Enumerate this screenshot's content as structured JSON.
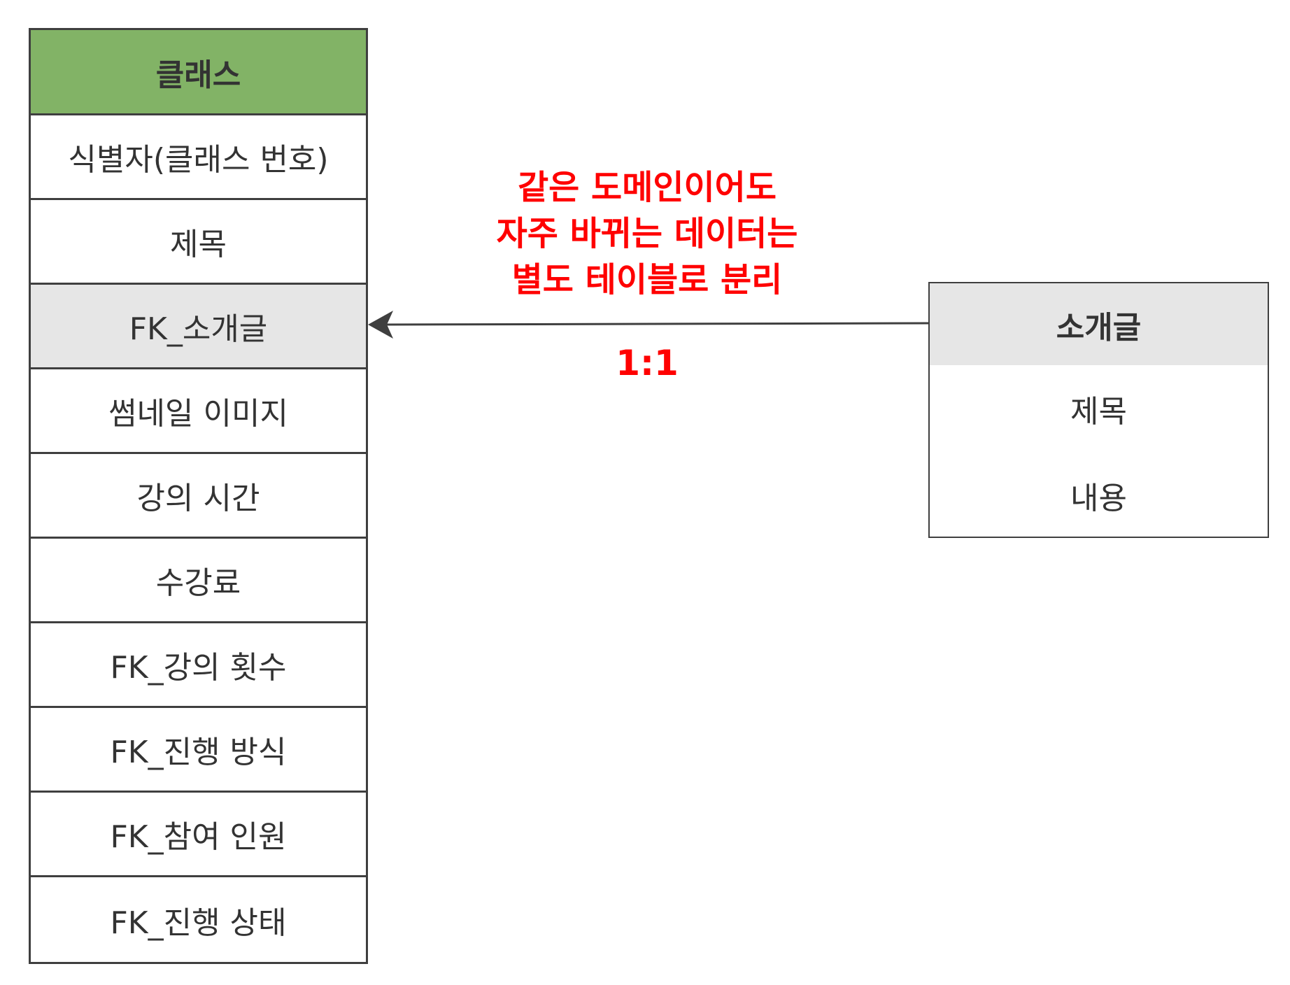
{
  "left_entity": {
    "title": "클래스",
    "header_color": "#82b366",
    "rows": [
      {
        "label": "식별자(클래스 번호)",
        "highlight": false
      },
      {
        "label": "제목",
        "highlight": false
      },
      {
        "label": "FK_소개글",
        "highlight": true
      },
      {
        "label": "썸네일 이미지",
        "highlight": false
      },
      {
        "label": "강의 시간",
        "highlight": false
      },
      {
        "label": "수강료",
        "highlight": false
      },
      {
        "label": "FK_강의 횟수",
        "highlight": false
      },
      {
        "label": "FK_진행 방식",
        "highlight": false
      },
      {
        "label": "FK_참여 인원",
        "highlight": false
      },
      {
        "label": "FK_진행 상태",
        "highlight": false
      }
    ]
  },
  "right_entity": {
    "title": "소개글",
    "header_color": "#e6e6e6",
    "rows": [
      "제목",
      "내용"
    ]
  },
  "relationship": {
    "note_lines": [
      "같은 도메인이어도",
      "자주 바뀌는 데이터는",
      "별도 테이블로 분리"
    ],
    "cardinality": "1:1",
    "note_color": "#ff0000"
  }
}
